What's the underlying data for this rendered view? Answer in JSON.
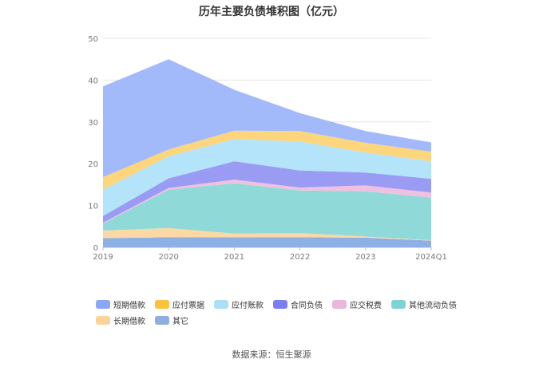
{
  "chart_data": {
    "type": "area",
    "stacked": true,
    "title": "历年主要负债堆积图（亿元）",
    "x": [
      "2019",
      "2020",
      "2021",
      "2022",
      "2023",
      "2024Q1"
    ],
    "ylim": [
      0,
      50
    ],
    "yticks": [
      0,
      10,
      20,
      30,
      40,
      50
    ],
    "grid": true,
    "legend_position": "bottom",
    "series": [
      {
        "name": "其它",
        "color": "#8fb0e4",
        "values": [
          2.2,
          2.4,
          2.4,
          2.4,
          2.3,
          1.6
        ]
      },
      {
        "name": "长期借款",
        "color": "#fcd9a4",
        "values": [
          1.8,
          2.2,
          0.9,
          1.0,
          0.3,
          0.1
        ]
      },
      {
        "name": "其他流动负债",
        "color": "#8fdad8",
        "values": [
          1.7,
          9.2,
          12.0,
          10.2,
          10.8,
          10.2
        ]
      },
      {
        "name": "应交税费",
        "color": "#f0c0e0",
        "values": [
          0.2,
          0.4,
          0.9,
          0.7,
          1.4,
          1.2
        ]
      },
      {
        "name": "合同负债",
        "color": "#9a9cf4",
        "values": [
          1.6,
          2.3,
          4.4,
          4.1,
          3.1,
          3.3
        ]
      },
      {
        "name": "应付账款",
        "color": "#b4e4fa",
        "values": [
          6.3,
          5.3,
          5.3,
          6.9,
          4.8,
          4.2
        ]
      },
      {
        "name": "应付票据",
        "color": "#fdd57d",
        "values": [
          3.0,
          1.6,
          2.0,
          2.5,
          2.3,
          2.3
        ]
      },
      {
        "name": "短期借款",
        "color": "#a3bafa",
        "values": [
          21.7,
          21.6,
          9.8,
          4.3,
          2.8,
          2.2
        ]
      }
    ]
  },
  "legend_items": [
    {
      "label": "短期借款",
      "color": "#8aa6f7"
    },
    {
      "label": "应付票据",
      "color": "#fcc23e"
    },
    {
      "label": "应付账款",
      "color": "#a9e0f7"
    },
    {
      "label": "合同负债",
      "color": "#7b7ef0"
    },
    {
      "label": "应交税费",
      "color": "#e9b6dc"
    },
    {
      "label": "其他流动负债",
      "color": "#7fd3d3"
    },
    {
      "label": "长期借款",
      "color": "#fcd39a"
    },
    {
      "label": "其它",
      "color": "#8fadde"
    }
  ],
  "source": "数据来源：恒生聚源"
}
